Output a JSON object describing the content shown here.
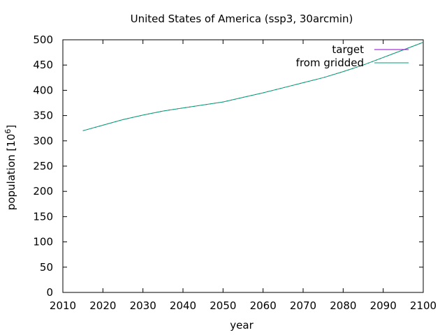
{
  "chart_data": {
    "type": "line",
    "title": "United States of America (ssp3, 30arcmin)",
    "xlabel": "year",
    "ylabel_main": "population [10",
    "ylabel_exp": "6",
    "ylabel_close": "]",
    "xlim": [
      2010,
      2100
    ],
    "ylim": [
      0,
      500
    ],
    "x_ticks": [
      "2010",
      "2020",
      "2030",
      "2040",
      "2050",
      "2060",
      "2070",
      "2080",
      "2090",
      "2100"
    ],
    "y_ticks": [
      "0",
      "50",
      "100",
      "150",
      "200",
      "250",
      "300",
      "350",
      "400",
      "450",
      "500"
    ],
    "grid": false,
    "legend_position": "top-right",
    "series": [
      {
        "name": "target",
        "color": "#9400d3",
        "x": [
          2015,
          2020,
          2025,
          2030,
          2035,
          2040,
          2045,
          2050,
          2055,
          2060,
          2065,
          2070,
          2075,
          2080,
          2085,
          2090,
          2095,
          2100
        ],
        "y": [
          320,
          331,
          342,
          351,
          359,
          365,
          371,
          377,
          386,
          395,
          405,
          415,
          425,
          437,
          450,
          465,
          480,
          495
        ]
      },
      {
        "name": "from gridded",
        "color": "#009e73",
        "x": [
          2015,
          2020,
          2025,
          2030,
          2035,
          2040,
          2045,
          2050,
          2055,
          2060,
          2065,
          2070,
          2075,
          2080,
          2085,
          2090,
          2095,
          2100
        ],
        "y": [
          320,
          331,
          342,
          351,
          359,
          365,
          371,
          377,
          386,
          395,
          405,
          415,
          425,
          437,
          450,
          465,
          480,
          495
        ]
      }
    ]
  }
}
